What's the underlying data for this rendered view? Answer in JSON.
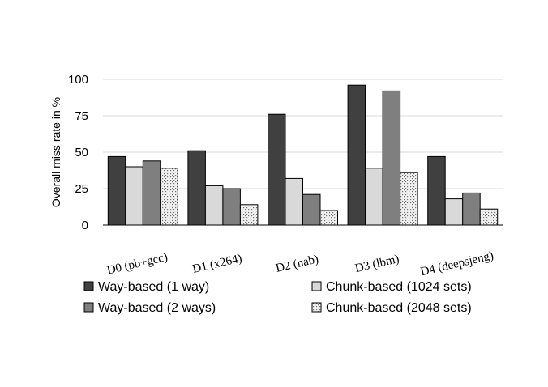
{
  "chart_data": {
    "type": "bar",
    "title": "",
    "xlabel": "",
    "ylabel": "Overall miss rate in %",
    "ylim": [
      0,
      100
    ],
    "yticks": [
      0,
      25,
      50,
      75,
      100
    ],
    "grid": true,
    "legend_position": "bottom",
    "categories": [
      "D0 (pb+gcc)",
      "D1 (x264)",
      "D2 (nab)",
      "D3 (lbm)",
      "D4 (deepsjeng)"
    ],
    "series": [
      {
        "name": "Way-based (1 way)",
        "color": "#404040",
        "pattern": "solid",
        "values": [
          47,
          51,
          76,
          96,
          47
        ]
      },
      {
        "name": "Chunk-based (1024 sets)",
        "color": "#d9d9d9",
        "pattern": "solid",
        "values": [
          40,
          27,
          32,
          39,
          18
        ]
      },
      {
        "name": "Way-based (2 ways)",
        "color": "#7f7f7f",
        "pattern": "solid",
        "values": [
          44,
          25,
          21,
          92,
          22
        ]
      },
      {
        "name": "Chunk-based (2048 sets)",
        "color": "#e6e6e6",
        "pattern": "dotted",
        "values": [
          39,
          14,
          10,
          36,
          11
        ]
      }
    ]
  }
}
